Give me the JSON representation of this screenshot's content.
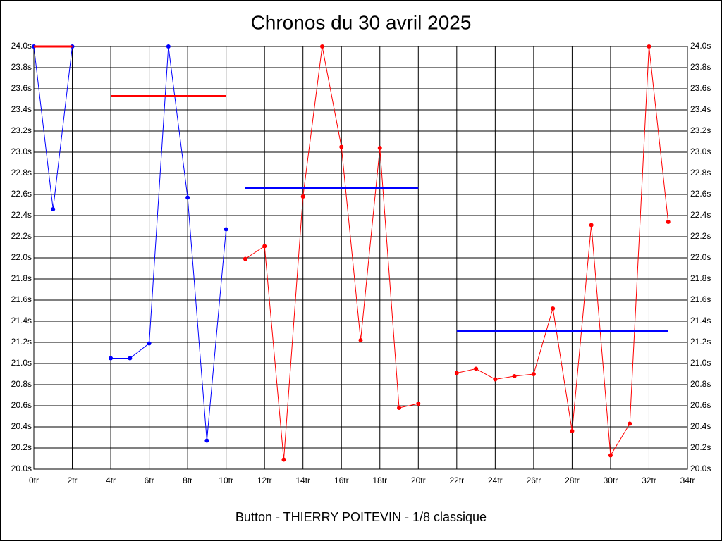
{
  "chart_data": {
    "type": "line",
    "title": "Chronos du 30 avril 2025",
    "xlabel": "Button - THIERRY POITEVIN - 1/8 classique",
    "xlim": [
      0,
      34
    ],
    "xticks": [
      {
        "value": 0,
        "label": "0tr"
      },
      {
        "value": 2,
        "label": "2tr"
      },
      {
        "value": 4,
        "label": "4tr"
      },
      {
        "value": 6,
        "label": "6tr"
      },
      {
        "value": 8,
        "label": "8tr"
      },
      {
        "value": 10,
        "label": "10tr"
      },
      {
        "value": 12,
        "label": "12tr"
      },
      {
        "value": 14,
        "label": "14tr"
      },
      {
        "value": 16,
        "label": "16tr"
      },
      {
        "value": 18,
        "label": "18tr"
      },
      {
        "value": 20,
        "label": "20tr"
      },
      {
        "value": 22,
        "label": "22tr"
      },
      {
        "value": 24,
        "label": "24tr"
      },
      {
        "value": 26,
        "label": "26tr"
      },
      {
        "value": 28,
        "label": "28tr"
      },
      {
        "value": 30,
        "label": "30tr"
      },
      {
        "value": 32,
        "label": "32tr"
      },
      {
        "value": 34,
        "label": "34tr"
      }
    ],
    "ylim": [
      20.0,
      24.0
    ],
    "yticks": [
      {
        "value": 20.0,
        "label": "20.0s"
      },
      {
        "value": 20.2,
        "label": "20.2s"
      },
      {
        "value": 20.4,
        "label": "20.4s"
      },
      {
        "value": 20.6,
        "label": "20.6s"
      },
      {
        "value": 20.8,
        "label": "20.8s"
      },
      {
        "value": 21.0,
        "label": "21.0s"
      },
      {
        "value": 21.2,
        "label": "21.2s"
      },
      {
        "value": 21.4,
        "label": "21.4s"
      },
      {
        "value": 21.6,
        "label": "21.6s"
      },
      {
        "value": 21.8,
        "label": "21.8s"
      },
      {
        "value": 22.0,
        "label": "22.0s"
      },
      {
        "value": 22.2,
        "label": "22.2s"
      },
      {
        "value": 22.4,
        "label": "22.4s"
      },
      {
        "value": 22.6,
        "label": "22.6s"
      },
      {
        "value": 22.8,
        "label": "22.8s"
      },
      {
        "value": 23.0,
        "label": "23.0s"
      },
      {
        "value": 23.2,
        "label": "23.2s"
      },
      {
        "value": 23.4,
        "label": "23.4s"
      },
      {
        "value": 23.6,
        "label": "23.6s"
      },
      {
        "value": 23.8,
        "label": "23.8s"
      },
      {
        "value": 24.0,
        "label": "24.0s"
      }
    ],
    "grid": true,
    "series": [
      {
        "color": "#0000ff",
        "x": [
          0,
          1,
          2
        ],
        "values": [
          24.0,
          22.46,
          24.0
        ],
        "markers": true
      },
      {
        "color": "#0000ff",
        "x": [
          4,
          5,
          6,
          7,
          8,
          9,
          10
        ],
        "values": [
          21.05,
          21.05,
          21.19,
          24.0,
          22.57,
          20.27,
          22.27
        ],
        "markers": true
      },
      {
        "color": "#ff0000",
        "x": [
          11,
          12,
          13,
          14,
          15,
          16,
          17,
          18,
          19,
          20
        ],
        "values": [
          21.99,
          22.11,
          20.09,
          22.58,
          24.0,
          23.05,
          21.22,
          23.04,
          20.58,
          20.62
        ],
        "markers": true
      },
      {
        "color": "#ff0000",
        "x": [
          22,
          23,
          24,
          25,
          26,
          27,
          28,
          29,
          30,
          31,
          32,
          33
        ],
        "values": [
          20.91,
          20.95,
          20.85,
          20.88,
          20.9,
          21.52,
          20.36,
          22.31,
          20.13,
          20.43,
          24.0,
          22.34
        ],
        "markers": true
      },
      {
        "color": "#ff0000",
        "x": [
          0,
          2
        ],
        "values": [
          24.0,
          24.0
        ],
        "markers": false
      },
      {
        "color": "#ff0000",
        "x": [
          4,
          10
        ],
        "values": [
          23.53,
          23.53
        ],
        "markers": false
      },
      {
        "color": "#0000ff",
        "x": [
          11,
          20
        ],
        "values": [
          22.66,
          22.66
        ],
        "markers": false
      },
      {
        "color": "#0000ff",
        "x": [
          22,
          33
        ],
        "values": [
          21.31,
          21.31
        ],
        "markers": false
      }
    ]
  }
}
